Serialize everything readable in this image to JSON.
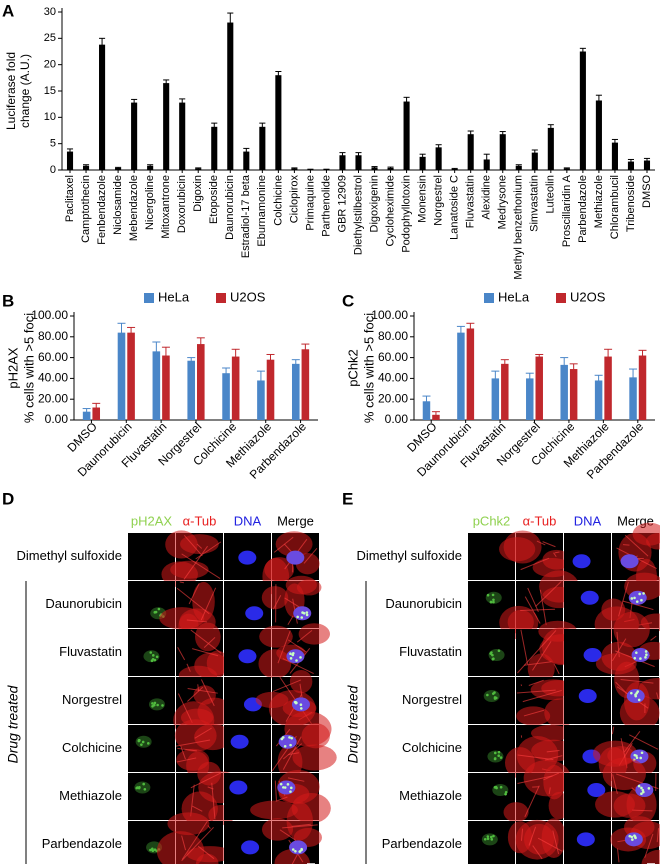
{
  "panel_labels": [
    "A",
    "B",
    "C",
    "D",
    "E"
  ],
  "chart_data": [
    {
      "type": "bar",
      "y_label": [
        "Luciferase fold",
        "change (A.U.)"
      ],
      "categories": [
        "Paclitaxel",
        "Camptothecin",
        "Fenbendazole",
        "Niclosamide",
        "Mebendazole",
        "Nicergoline",
        "Mitoxantrone",
        "Doxorubicin",
        "Digoxin",
        "Etoposide",
        "Daunorubicin",
        "Estradiol-17 beta",
        "Eburnamonine",
        "Colchicine",
        "Ciclopirox",
        "Primaquine",
        "Parthenolide",
        "GBR 12909",
        "Diethylstilbestrol",
        "Digoxigenin",
        "Cycloheximide",
        "Podophyllotoxin",
        "Monensin",
        "Norgestrel",
        "Lanatoside C",
        "Fluvastatin",
        "Alexidine",
        "Medrysone",
        "Methyl benzethonium",
        "Simvastatin",
        "Luteolin",
        "Proscillaridin A",
        "Parbendazole",
        "Methiazole",
        "Chlorambucil",
        "Tribenoside",
        "DMSO"
      ],
      "values": [
        3.5,
        0.8,
        23.8,
        0.4,
        12.8,
        0.8,
        16.5,
        12.8,
        0.3,
        8.2,
        28,
        3.5,
        8.2,
        18,
        0.3,
        0.1,
        0.1,
        2.8,
        2.8,
        0.5,
        0.4,
        13,
        2.5,
        4.3,
        0.2,
        6.8,
        2,
        6.8,
        0.8,
        3.3,
        8,
        0.3,
        22.5,
        13.2,
        5.2,
        1.6,
        1.8
      ],
      "errors": [
        0.5,
        0.2,
        1.2,
        0.1,
        0.6,
        0.2,
        0.6,
        0.7,
        0.1,
        0.7,
        1.8,
        0.6,
        0.7,
        0.7,
        0.1,
        0.05,
        0.05,
        0.5,
        0.5,
        0.15,
        0.15,
        0.8,
        0.5,
        0.5,
        0.1,
        0.6,
        1,
        0.5,
        0.2,
        0.5,
        0.6,
        0.1,
        0.6,
        1,
        0.6,
        0.4,
        0.4
      ],
      "color": "#000000",
      "ylim": [
        0,
        30
      ],
      "yticks": [
        0,
        5,
        10,
        15,
        20,
        25,
        30
      ],
      "grid": false
    },
    {
      "type": "bar",
      "y_label": [
        "pH2AX",
        "% cells with >5 foci"
      ],
      "categories": [
        "DMSO",
        "Daunorubicin",
        "Fluvastatin",
        "Norgestrel",
        "Colchicine",
        "Methiazole",
        "Parbendazole"
      ],
      "series": [
        {
          "name": "HeLa",
          "color": "#4a86c8",
          "values": [
            8,
            84,
            66,
            57,
            45,
            38,
            54
          ],
          "errors": [
            3,
            9,
            9,
            3,
            5,
            9,
            4
          ]
        },
        {
          "name": "U2OS",
          "color": "#c0282d",
          "values": [
            12,
            84,
            62,
            73,
            61,
            58,
            68
          ],
          "errors": [
            4,
            5,
            8,
            6,
            7,
            5,
            5
          ]
        }
      ],
      "ylim": [
        0,
        100
      ],
      "yticks": [
        {
          "value": 0,
          "label": "0.00"
        },
        {
          "value": 20,
          "label": "20.00"
        },
        {
          "value": 40,
          "label": "40.00"
        },
        {
          "value": 60,
          "label": "60.00"
        },
        {
          "value": 80,
          "label": "80.00"
        },
        {
          "value": 100,
          "label": "100.00"
        }
      ],
      "grid": false,
      "legend": "top"
    },
    {
      "type": "bar",
      "y_label": [
        "pChk2",
        "% cells with >5 foci"
      ],
      "categories": [
        "DMSO",
        "Daunorubicin",
        "Fluvastatin",
        "Norgestrel",
        "Colchicine",
        "Methiazole",
        "Parbendazole"
      ],
      "series": [
        {
          "name": "HeLa",
          "color": "#4a86c8",
          "values": [
            18,
            84,
            40,
            40,
            53,
            38,
            41
          ],
          "errors": [
            5,
            6,
            7,
            5,
            7,
            5,
            8
          ]
        },
        {
          "name": "U2OS",
          "color": "#c0282d",
          "values": [
            5,
            88,
            54,
            61,
            49,
            61,
            62
          ],
          "errors": [
            3,
            5,
            4,
            2,
            5,
            7,
            5
          ]
        }
      ],
      "ylim": [
        0,
        100
      ],
      "yticks": [
        {
          "value": 0,
          "label": "0.00"
        },
        {
          "value": 20,
          "label": "20.00"
        },
        {
          "value": 40,
          "label": "40.00"
        },
        {
          "value": 60,
          "label": "60.00"
        },
        {
          "value": 80,
          "label": "80.00"
        },
        {
          "value": 100,
          "label": "100.00"
        }
      ],
      "grid": false,
      "legend": "top"
    }
  ],
  "image_panels": [
    {
      "columns": [
        "pH2AX",
        "α-Tub",
        "DNA",
        "Merge"
      ],
      "rows": [
        "Dimethyl sulfoxide",
        "Daunorubicin",
        "Fluvastatin",
        "Norgestrel",
        "Colchicine",
        "Methiazole",
        "Parbendazole"
      ],
      "group_label": "Drug treated"
    },
    {
      "columns": [
        "pChk2",
        "α-Tub",
        "DNA",
        "Merge"
      ],
      "rows": [
        "Dimethyl sulfoxide",
        "Daunorubicin",
        "Fluvastatin",
        "Norgestrel",
        "Colchicine",
        "Methiazole",
        "Parbendazole"
      ],
      "group_label": "Drug treated"
    }
  ]
}
